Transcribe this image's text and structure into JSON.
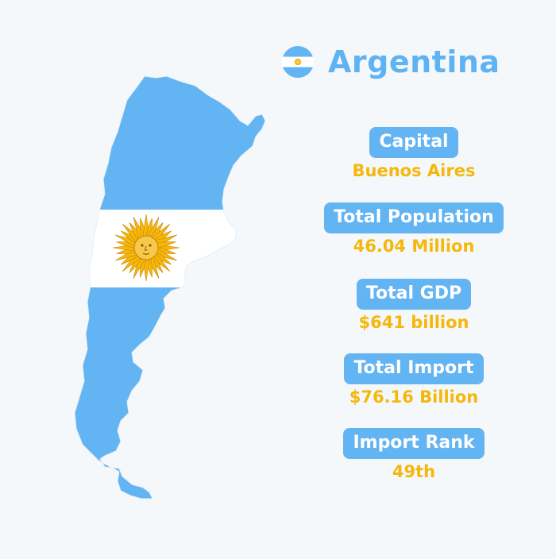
{
  "header": {
    "country": "Argentina"
  },
  "colors": {
    "sky_blue": "#63b4f2",
    "white": "#ffffff",
    "sun_gold": "#f5b70a",
    "value_text": "#f5b70a",
    "background": "#f4f8fb"
  },
  "icons": {
    "flag": "argentina-flag-icon",
    "map": "argentina-map-flag"
  },
  "facts": [
    {
      "label": "Capital",
      "value": "Buenos Aires"
    },
    {
      "label": "Total Population",
      "value": "46.04 Million"
    },
    {
      "label": "Total GDP",
      "value": "$641 billion"
    },
    {
      "label": "Total Import",
      "value": "$76.16 Billion"
    },
    {
      "label": "Import Rank",
      "value": "49th"
    }
  ]
}
